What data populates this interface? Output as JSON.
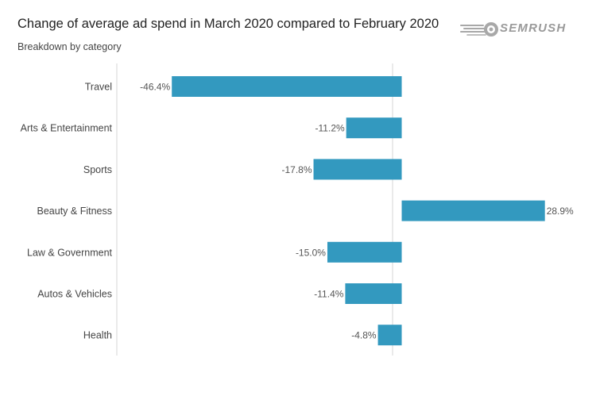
{
  "header": {
    "title": "Change of average ad spend in March 2020 compared to February 2020",
    "subtitle": "Breakdown by category"
  },
  "logo": {
    "text": "SEMRUSH",
    "icon": "semrush-fireball-icon"
  },
  "chart_data": {
    "type": "bar",
    "orientation": "horizontal",
    "title": "Change of average ad spend in March 2020 compared to February 2020",
    "subtitle": "Breakdown by category",
    "categories": [
      "Travel",
      "Arts & Entertainment",
      "Sports",
      "Beauty & Fitness",
      "Law & Government",
      "Autos & Vehicles",
      "Health"
    ],
    "values": [
      -46.4,
      -11.2,
      -17.8,
      28.9,
      -15.0,
      -11.4,
      -4.8
    ],
    "value_labels": [
      "-46.4%",
      "-11.2%",
      "-17.8%",
      "28.9%",
      "-15.0%",
      "-11.4%",
      "-4.8%"
    ],
    "unit": "%",
    "xlim": [
      -57.5,
      33.6
    ],
    "xlabel": "",
    "ylabel": "",
    "grid": false,
    "bar_color": "#3399bf"
  }
}
